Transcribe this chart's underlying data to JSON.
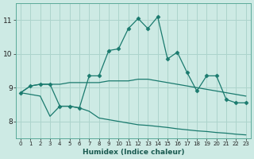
{
  "xlabel": "Humidex (Indice chaleur)",
  "background_color": "#cdeae4",
  "line_color": "#1a7a6e",
  "grid_color": "#add4cc",
  "xlim": [
    -0.5,
    23.5
  ],
  "ylim": [
    7.5,
    11.5
  ],
  "xticks": [
    0,
    1,
    2,
    3,
    4,
    5,
    6,
    7,
    8,
    9,
    10,
    11,
    12,
    13,
    14,
    15,
    16,
    17,
    18,
    19,
    20,
    21,
    22,
    23
  ],
  "yticks": [
    8,
    9,
    10,
    11
  ],
  "line1_x": [
    0,
    1,
    2,
    3,
    4,
    5,
    6,
    7,
    8,
    9,
    10,
    11,
    12,
    13,
    14,
    15,
    16,
    17,
    18,
    19,
    20,
    21,
    22,
    23
  ],
  "line1_y": [
    8.85,
    9.05,
    9.1,
    9.1,
    9.1,
    9.15,
    9.15,
    9.15,
    9.15,
    9.2,
    9.2,
    9.2,
    9.25,
    9.25,
    9.2,
    9.15,
    9.1,
    9.05,
    9.0,
    8.95,
    8.9,
    8.85,
    8.8,
    8.75
  ],
  "line2_x": [
    0,
    1,
    2,
    3,
    4,
    5,
    6,
    7,
    8,
    9,
    10,
    11,
    12,
    13,
    14,
    15,
    16,
    17,
    18,
    19,
    20,
    21,
    22,
    23
  ],
  "line2_y": [
    8.85,
    8.8,
    8.75,
    8.15,
    8.45,
    8.45,
    8.4,
    8.3,
    8.1,
    8.05,
    8.0,
    7.95,
    7.9,
    7.88,
    7.85,
    7.82,
    7.78,
    7.75,
    7.72,
    7.7,
    7.67,
    7.65,
    7.62,
    7.6
  ],
  "line3_x": [
    0,
    1,
    2,
    3,
    4,
    5,
    6,
    7,
    8,
    9,
    10,
    11,
    12,
    13,
    14,
    15,
    16,
    17,
    18,
    19,
    20,
    21,
    22,
    23
  ],
  "line3_y": [
    8.85,
    9.05,
    9.1,
    9.1,
    8.45,
    8.45,
    8.4,
    9.35,
    9.35,
    10.1,
    10.15,
    10.75,
    11.05,
    10.75,
    11.1,
    9.85,
    10.05,
    9.45,
    8.9,
    9.35,
    9.35,
    8.65,
    8.55,
    8.55
  ]
}
